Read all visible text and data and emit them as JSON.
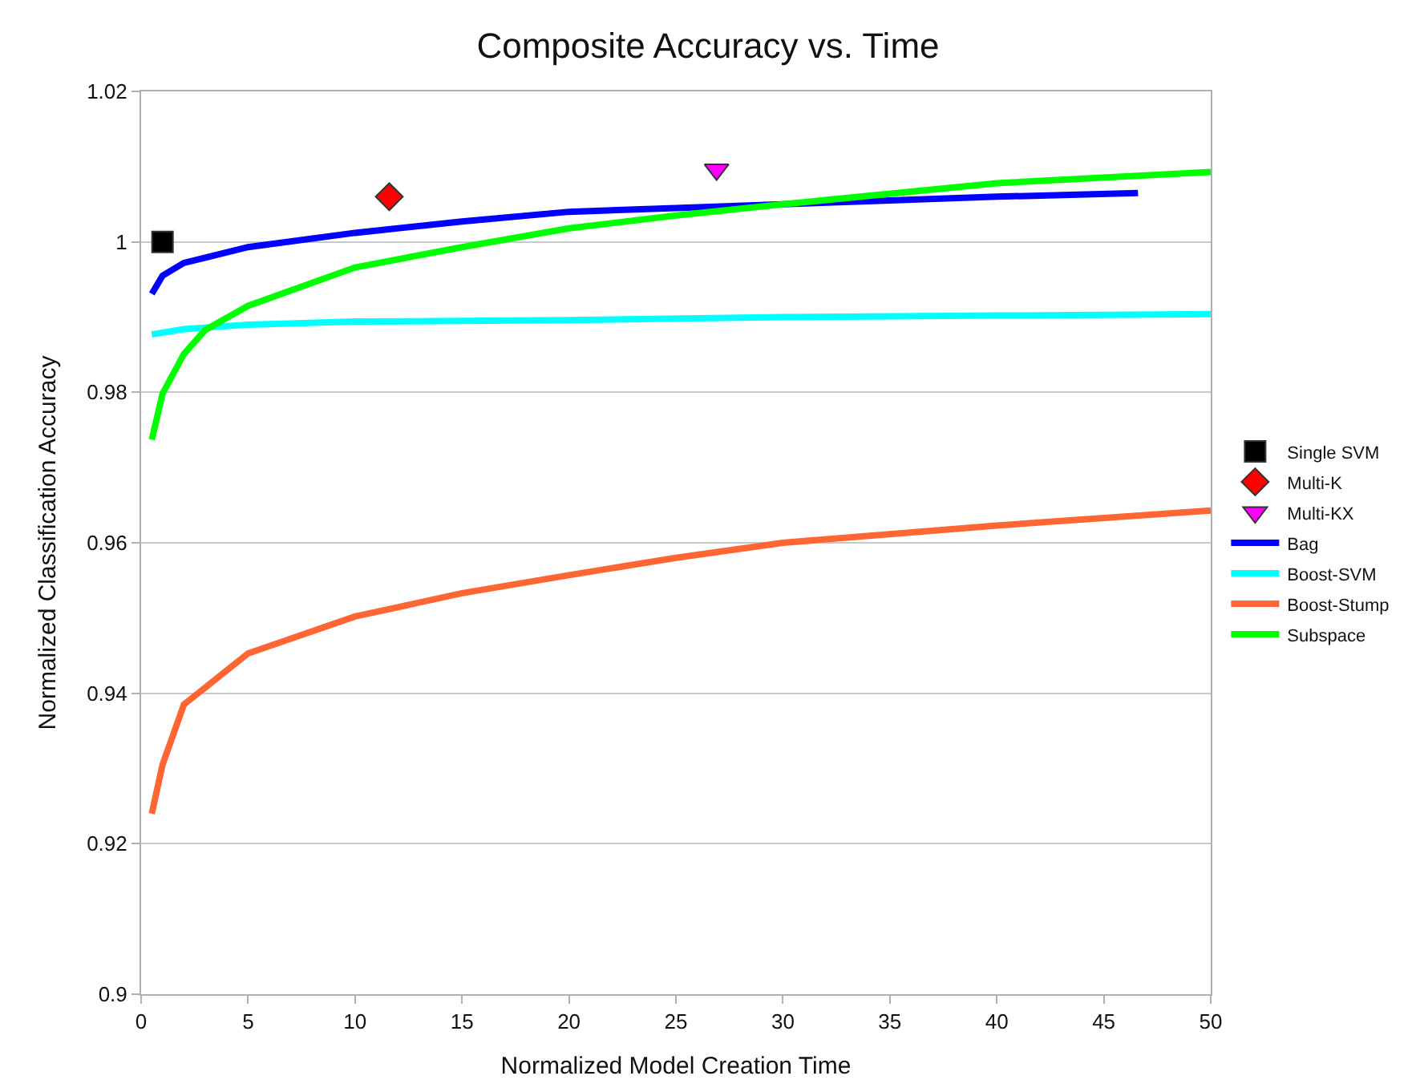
{
  "chart_data": {
    "type": "line",
    "title": "Composite Accuracy vs. Time",
    "xlabel": "Normalized Model Creation Time",
    "ylabel": "Normalized Classification Accuracy",
    "xlim": [
      0,
      50
    ],
    "xticks": [
      0,
      5,
      10,
      15,
      20,
      25,
      30,
      35,
      40,
      45,
      50
    ],
    "ylim": [
      0.9,
      1.02
    ],
    "yticks": [
      0.9,
      0.92,
      0.94,
      0.96,
      0.98,
      1,
      1.02
    ],
    "grid": "y",
    "legend": "right",
    "series": [
      {
        "name": "Single SVM",
        "type": "scatter",
        "marker": "square",
        "color": "#000000",
        "x": [
          1
        ],
        "values": [
          1.0
        ]
      },
      {
        "name": "Multi-K",
        "type": "scatter",
        "marker": "diamond",
        "color": "#ff0000",
        "x": [
          11.6
        ],
        "values": [
          1.006
        ]
      },
      {
        "name": "Multi-KX",
        "type": "scatter",
        "marker": "triangle",
        "color": "#ff00ff",
        "x": [
          26.9
        ],
        "values": [
          1.0096
        ]
      },
      {
        "name": "Bag",
        "color": "#0000ff",
        "x": [
          0.5,
          1,
          2,
          5,
          10,
          15,
          20,
          25,
          30,
          35,
          40,
          46.6
        ],
        "values": [
          0.9931,
          0.9955,
          0.9972,
          0.9993,
          1.0012,
          1.0027,
          1.004,
          1.0045,
          1.005,
          1.0055,
          1.006,
          1.0065
        ]
      },
      {
        "name": "Boost-SVM",
        "color": "#00ffff",
        "x": [
          0.5,
          2,
          5,
          10,
          20,
          30,
          40,
          50
        ],
        "values": [
          0.9877,
          0.9884,
          0.989,
          0.9894,
          0.9896,
          0.99,
          0.9902,
          0.9904
        ]
      },
      {
        "name": "Boost-Stump",
        "color": "#ff6633",
        "x": [
          0.5,
          1,
          2,
          5,
          10,
          15,
          20,
          25,
          30,
          40,
          50
        ],
        "values": [
          0.924,
          0.9305,
          0.9385,
          0.9453,
          0.9502,
          0.9533,
          0.9557,
          0.958,
          0.96,
          0.9623,
          0.9643
        ]
      },
      {
        "name": "Subspace",
        "color": "#00ff00",
        "x": [
          0.5,
          1,
          2,
          3,
          5,
          10,
          15,
          20,
          25,
          30,
          40,
          50
        ],
        "values": [
          0.9737,
          0.9798,
          0.9851,
          0.9883,
          0.9915,
          0.9966,
          0.9993,
          1.0018,
          1.0035,
          1.005,
          1.0078,
          1.0093
        ]
      }
    ]
  }
}
